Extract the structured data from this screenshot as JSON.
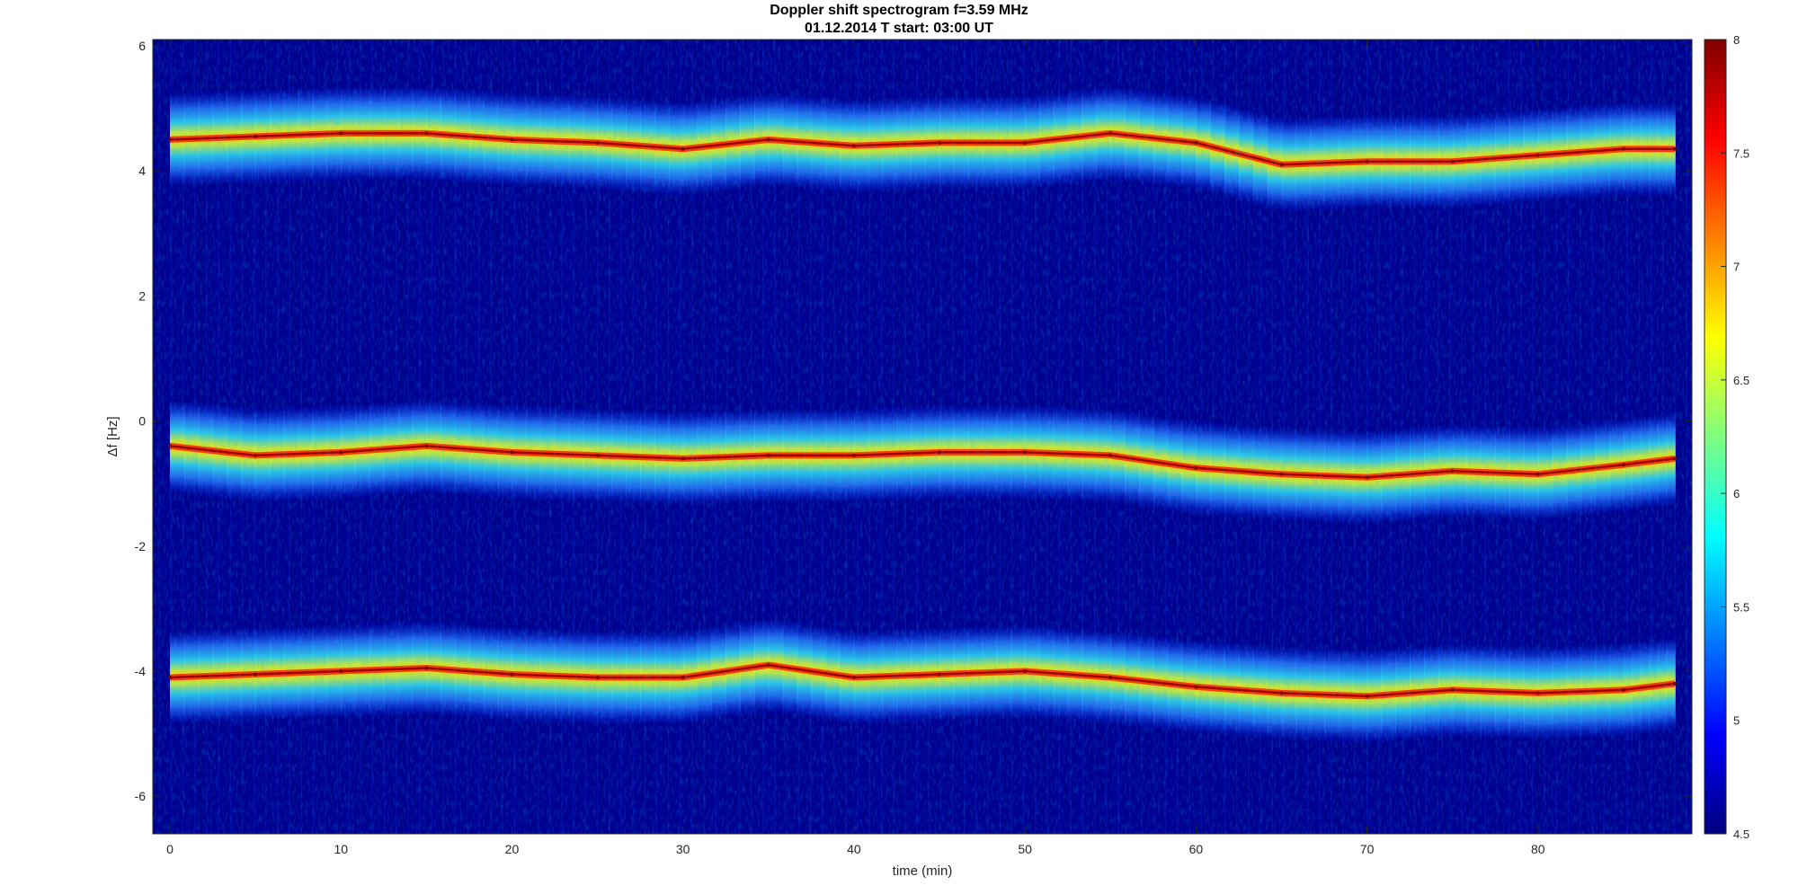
{
  "chart_data": {
    "type": "heatmap",
    "title": "Doppler shift spectrogram f=3.59 MHz",
    "subtitle": "01.12.2014   T start: 03:00 UT",
    "xlabel": "time (min)",
    "ylabel": "Δf [Hz]",
    "xlim": [
      -1,
      89
    ],
    "ylim": [
      -6.6,
      6.1
    ],
    "xticks": [
      0,
      10,
      20,
      30,
      40,
      50,
      60,
      70,
      80
    ],
    "yticks": [
      -6,
      -4,
      -2,
      0,
      2,
      4,
      6
    ],
    "colorbar": {
      "range": [
        4.5,
        8
      ],
      "ticks": [
        4.5,
        5,
        5.5,
        6,
        6.5,
        7,
        7.5,
        8
      ],
      "colormap": "jet",
      "colors": [
        "#00007f",
        "#0000ff",
        "#007fff",
        "#00ffff",
        "#7fff7f",
        "#ffff00",
        "#ff7f00",
        "#ff0000",
        "#7f0000"
      ]
    },
    "series": [
      {
        "x": [
          0,
          5,
          10,
          15,
          20,
          25,
          30,
          35,
          40,
          45,
          50,
          55,
          60,
          65,
          70,
          75,
          80,
          85,
          88
        ],
        "y": [
          4.5,
          4.55,
          4.6,
          4.6,
          4.5,
          4.45,
          4.35,
          4.5,
          4.4,
          4.45,
          4.45,
          4.6,
          4.45,
          4.1,
          4.15,
          4.15,
          4.25,
          4.35,
          4.35
        ]
      },
      {
        "x": [
          0,
          5,
          10,
          15,
          20,
          25,
          30,
          35,
          40,
          45,
          50,
          55,
          60,
          65,
          70,
          75,
          80,
          85,
          88
        ],
        "y": [
          -0.4,
          -0.55,
          -0.5,
          -0.4,
          -0.5,
          -0.55,
          -0.6,
          -0.55,
          -0.55,
          -0.5,
          -0.5,
          -0.55,
          -0.75,
          -0.85,
          -0.9,
          -0.8,
          -0.85,
          -0.7,
          -0.6
        ]
      },
      {
        "x": [
          0,
          5,
          10,
          15,
          20,
          25,
          30,
          35,
          40,
          45,
          50,
          55,
          60,
          65,
          70,
          75,
          80,
          85,
          88
        ],
        "y": [
          -4.1,
          -4.05,
          -4.0,
          -3.95,
          -4.05,
          -4.1,
          -4.1,
          -3.9,
          -4.1,
          -4.05,
          -4.0,
          -4.1,
          -4.25,
          -4.35,
          -4.4,
          -4.3,
          -4.35,
          -4.3,
          -4.2
        ]
      }
    ]
  }
}
